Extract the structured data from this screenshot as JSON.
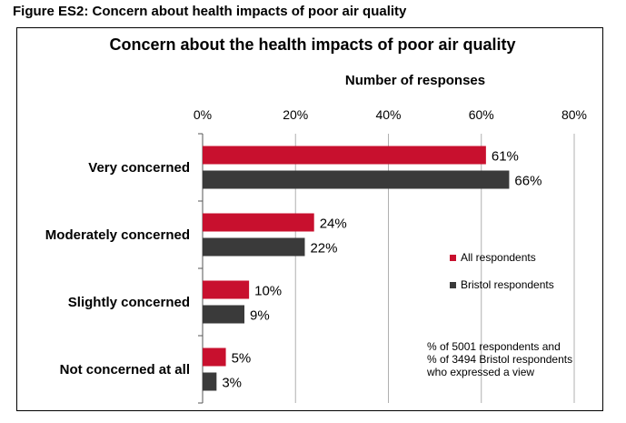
{
  "figure_caption": "Figure ES2: Concern about health impacts of poor air quality",
  "chart_data": {
    "type": "bar",
    "orientation": "horizontal",
    "title": "Concern about the health impacts of poor air quality",
    "xlabel": "Number of responses",
    "ylabel": "",
    "xlim": [
      0,
      80
    ],
    "x_ticks": [
      "0%",
      "20%",
      "40%",
      "60%",
      "80%"
    ],
    "grid": true,
    "legend_position": "right",
    "categories": [
      "Very concerned",
      "Moderately concerned",
      "Slightly concerned",
      "Not concerned at all"
    ],
    "series": [
      {
        "name": "All respondents",
        "color": "#c8102e",
        "values": [
          61,
          24,
          10,
          5
        ],
        "labels": [
          "61%",
          "24%",
          "10%",
          "5%"
        ]
      },
      {
        "name": "Bristol respondents",
        "color": "#3a3a3a",
        "values": [
          66,
          22,
          9,
          3
        ],
        "labels": [
          "66%",
          "22%",
          "9%",
          "3%"
        ]
      }
    ],
    "annotation": [
      "% of 5001 respondents and",
      "% of 3494 Bristol respondents",
      "who expressed a view"
    ]
  }
}
